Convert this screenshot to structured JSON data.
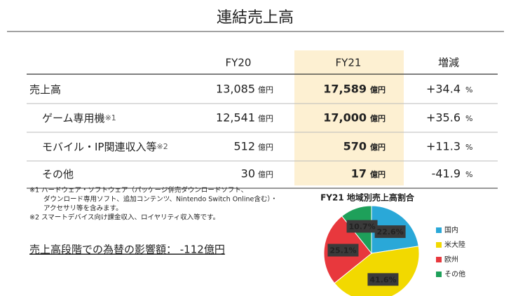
{
  "title": "連結売上高",
  "table": {
    "columns": [
      "FY20",
      "FY21",
      "増減"
    ],
    "units": {
      "yen": "億円",
      "percent": "%"
    },
    "rows": [
      {
        "label": "売上高",
        "fy20": "13,085",
        "fy21": "17,589",
        "change": "+34.4"
      },
      {
        "label": "ゲーム専用機",
        "note": "※1",
        "fy20": "12,541",
        "fy21": "17,000",
        "change": "+35.6"
      },
      {
        "label": "モバイル・IP関連収入等",
        "note": "※2",
        "fy20": "512",
        "fy21": "570",
        "change": "+11.3"
      },
      {
        "label": "その他",
        "fy20": "30",
        "fy21": "17",
        "change": "-41.9"
      }
    ]
  },
  "notes": [
    "※1 ハードウェア・ソフトウェア（パッケージ併売ダウンロードソフト、",
    "ダウンロード専用ソフト、追加コンテンツ、Nintendo Switch Online含む）・",
    "アクセサリ等を含みます。",
    "※2 スマートデバイス向け課金収入、ロイヤリティ収入等です。"
  ],
  "fx_effect": "売上高段階での為替の影響額： -112億円",
  "chart_data": {
    "type": "pie",
    "title": "FY21 地域別売上高割合",
    "categories": [
      "国内",
      "米大陸",
      "欧州",
      "その他"
    ],
    "values": [
      22.6,
      41.6,
      25.1,
      10.7
    ],
    "value_labels": [
      "22.6%",
      "41.6%",
      "25.1%",
      "10.7%"
    ],
    "colors": [
      "#2aa8d8",
      "#f2d900",
      "#e8383d",
      "#1ea05a"
    ]
  }
}
